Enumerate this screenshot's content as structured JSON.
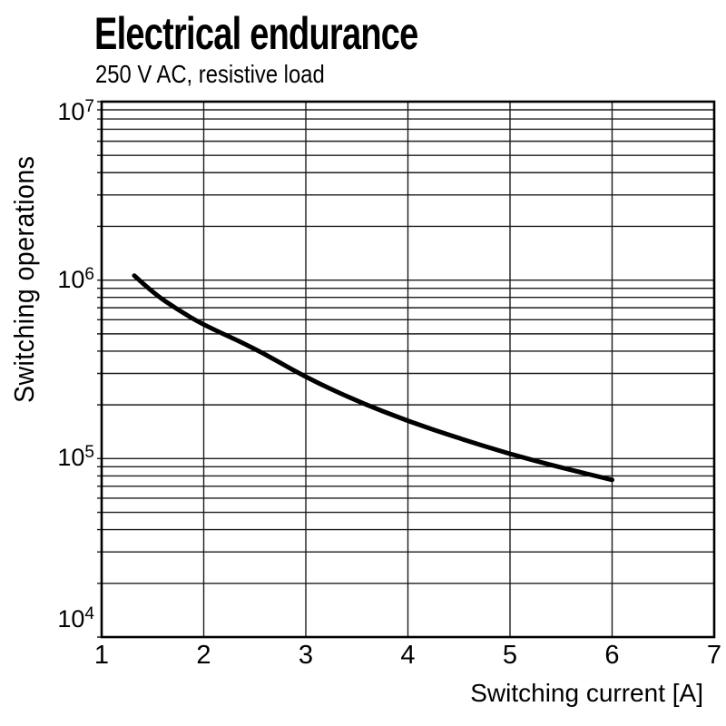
{
  "chart_data": {
    "type": "line",
    "title": "Electrical endurance",
    "subtitle": "250 V AC, resistive load",
    "xlabel": "Switching current [A]",
    "ylabel": "Switching operations",
    "x_scale": "linear",
    "y_scale": "log",
    "xlim": [
      1,
      7
    ],
    "ylim": [
      10000,
      10000000
    ],
    "x_ticks": [
      1,
      2,
      3,
      4,
      5,
      6,
      7
    ],
    "y_tick_exponents": [
      4,
      5,
      6,
      7
    ],
    "y_tick_labels": [
      "10⁴",
      "10⁵",
      "10⁶",
      "10⁷"
    ],
    "grid": {
      "vertical_at_x_ticks": true,
      "horizontal_log_minor": true,
      "legend": "none"
    },
    "colors": {
      "curve": "#000000",
      "grid": "#1c1c1c",
      "border": "#000000",
      "background": "#ffffff"
    },
    "series": [
      {
        "name": "endurance-curve",
        "stroke_width": 5,
        "points": [
          [
            1.32,
            1060000
          ],
          [
            1.5,
            850000
          ],
          [
            1.75,
            680000
          ],
          [
            2.0,
            560000
          ],
          [
            2.5,
            415000
          ],
          [
            3.0,
            285000
          ],
          [
            3.5,
            210000
          ],
          [
            4.0,
            162000
          ],
          [
            4.5,
            130000
          ],
          [
            5.0,
            106000
          ],
          [
            5.5,
            89000
          ],
          [
            6.0,
            76000
          ]
        ]
      }
    ]
  }
}
